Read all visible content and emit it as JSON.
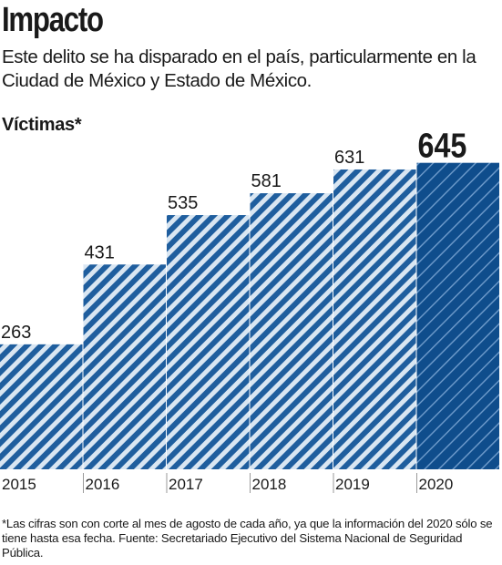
{
  "header": {
    "title": "Impacto",
    "subtitle": "Este delito se ha disparado en el país, particularmente en la Ciudad de México y Estado de México."
  },
  "footer": {
    "note": "*Las cifras son con corte al mes de agosto de cada año, ya que la información del 2020 sólo se tiene hasta esa fecha. Fuente: Secretariado Ejecutivo del Sistema Nacional de Seguridad Pública."
  },
  "colors": {
    "bar": "#1f5e9e",
    "bar_light": "#d9e6f2",
    "highlight": "#0f4d8c"
  },
  "chart_data": {
    "type": "bar",
    "title": "",
    "xlabel": "",
    "ylabel": "Víctimas*",
    "categories": [
      "2015",
      "2016",
      "2017",
      "2018",
      "2019",
      "2020"
    ],
    "values": [
      263,
      431,
      535,
      581,
      631,
      645
    ],
    "highlight_index": 5,
    "ylim": [
      0,
      700
    ],
    "grid": false,
    "legend": "none"
  }
}
